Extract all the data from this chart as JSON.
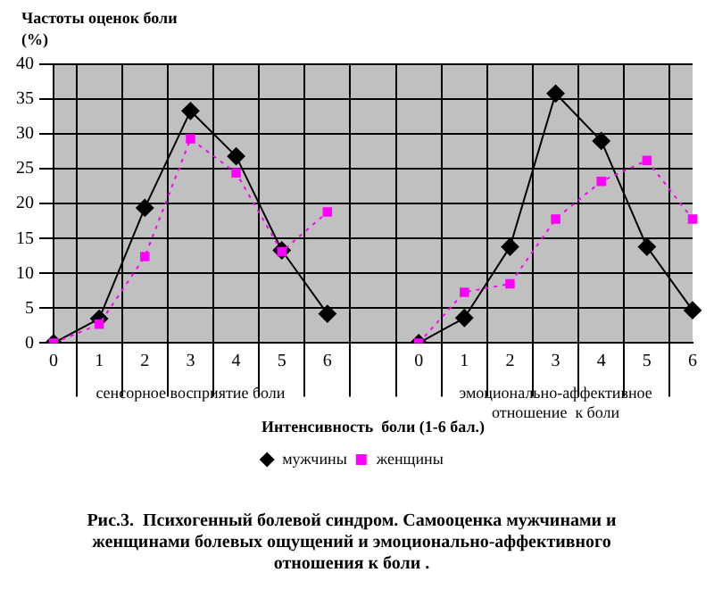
{
  "chart_data": {
    "type": "line",
    "title": "Рис.3.  Психогенный болевой синдром. Самооценка мужчинами и женщинами болевых ощущений и эмоционально-аффективного отношения к боли .",
    "ylabel": "Частоты оценок боли (%)",
    "xlabel": "Интенсивность  боли (1-6 бал.)",
    "annotations": [
      "сенсорное восприятие боли",
      "эмоционально-аффективное отношение  к боли"
    ],
    "categories": [
      "0",
      "1",
      "2",
      "3",
      "4",
      "5",
      "6",
      null,
      "0",
      "1",
      "2",
      "3",
      "4",
      "5",
      "6"
    ],
    "series": [
      {
        "name": "мужчины",
        "color": "#000000",
        "marker": "diamond",
        "line_style": "solid",
        "values": [
          0,
          3.5,
          19.4,
          33.3,
          26.8,
          13.3,
          4.2,
          null,
          0,
          3.6,
          13.8,
          35.8,
          29,
          13.8,
          4.7
        ]
      },
      {
        "name": "женщины",
        "color": "#ff00ff",
        "marker": "square",
        "line_style": "dotted",
        "values": [
          0,
          2.7,
          12.4,
          29.3,
          24.4,
          13.1,
          18.8,
          null,
          0,
          7.3,
          8.5,
          17.8,
          23.2,
          26.2,
          17.8
        ]
      }
    ],
    "ylim": [
      0,
      40
    ],
    "yticks": [
      0,
      5,
      10,
      15,
      20,
      25,
      30,
      35,
      40
    ],
    "grid": true,
    "legend": "bottom"
  }
}
